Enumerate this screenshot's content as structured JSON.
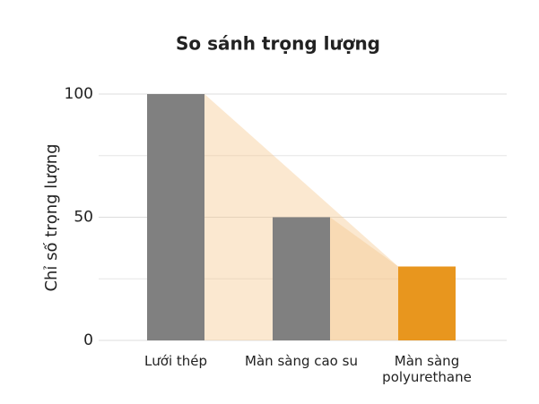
{
  "chart_data": {
    "type": "bar",
    "title": "So sánh trọng lượng",
    "y_label": "Chỉ số trọng lượng",
    "categories": [
      "Lưới thép",
      "Màn sàng cao su",
      "Màn sàng polyurethane"
    ],
    "values": [
      100,
      50,
      30
    ],
    "colors": [
      "#808080",
      "#808080",
      "#e8961e"
    ],
    "ylim": [
      0,
      100
    ],
    "yticks": [
      0,
      50,
      100
    ],
    "minor_yticks": [
      25,
      75
    ],
    "grid": true,
    "connector_color": "#f5c58a"
  }
}
